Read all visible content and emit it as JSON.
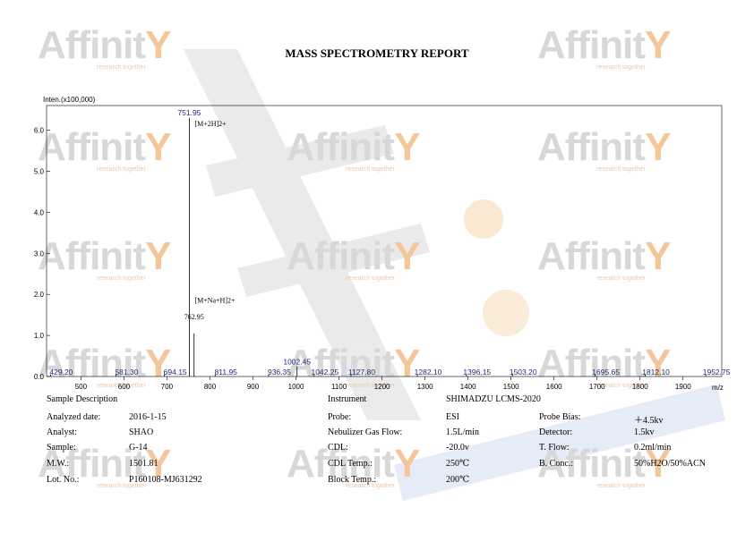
{
  "report": {
    "title": "MASS SPECTROMETRY REPORT",
    "watermark_text": "Affinit",
    "watermark_sub": "research together"
  },
  "chart_data": {
    "type": "bar",
    "ylabel": "Inten.(x100,000)",
    "xlabel": "m/z",
    "xlim": [
      420,
      1990
    ],
    "ylim": [
      0,
      6.6
    ],
    "x_ticks": [
      500,
      600,
      700,
      800,
      900,
      1000,
      1100,
      1200,
      1300,
      1400,
      1500,
      1600,
      1700,
      1800,
      1900
    ],
    "y_ticks": [
      0.0,
      1.0,
      2.0,
      3.0,
      4.0,
      5.0,
      6.0
    ],
    "y_tick_labels": [
      "0.0",
      "1.0",
      "2.0",
      "3.0",
      "4.0",
      "5.0",
      "6.0"
    ],
    "grid": false,
    "peaks": [
      {
        "mz": 429.2,
        "label": "429.20",
        "intensity": 0.05
      },
      {
        "mz": 581.3,
        "label": "581.30",
        "intensity": 0.06
      },
      {
        "mz": 694.15,
        "label": "694.15",
        "intensity": 0.06
      },
      {
        "mz": 751.95,
        "label": "751.95",
        "intensity": 6.3
      },
      {
        "mz": 762.95,
        "label": "762.95",
        "intensity": 1.05
      },
      {
        "mz": 811.95,
        "label": "811.95",
        "intensity": 0.05
      },
      {
        "mz": 936.35,
        "label": "936.35",
        "intensity": 0.05
      },
      {
        "mz": 1002.45,
        "label": "1002.45",
        "intensity": 0.25
      },
      {
        "mz": 1042.25,
        "label": "1042.25",
        "intensity": 0.05
      },
      {
        "mz": 1127.8,
        "label": "1127.80",
        "intensity": 0.05
      },
      {
        "mz": 1282.1,
        "label": "1282.10",
        "intensity": 0.05
      },
      {
        "mz": 1396.15,
        "label": "1396.15",
        "intensity": 0.05
      },
      {
        "mz": 1503.2,
        "label": "1503.20",
        "intensity": 0.07
      },
      {
        "mz": 1695.65,
        "label": "1695.65",
        "intensity": 0.05
      },
      {
        "mz": 1812.1,
        "label": "1812.10",
        "intensity": 0.05
      },
      {
        "mz": 1952.75,
        "label": "1952.75",
        "intensity": 0.05
      }
    ],
    "annotations": [
      {
        "text": "[M+2H]2+",
        "mz": 751.95,
        "y": 6.1
      },
      {
        "text": "[M+Na+H]2+",
        "mz": 751.95,
        "y": 1.8
      }
    ],
    "colors": {
      "peak": "#000000",
      "peak_label": "#1f2a78",
      "axis": "#000000"
    }
  },
  "info": {
    "sample_description": "Sample Description",
    "instrument_label": "Instrument",
    "instrument_value": "SHIMADZU LCMS-2020",
    "left": [
      {
        "label": "Analyzed date:",
        "value": "2016-1-15"
      },
      {
        "label": "Analyst:",
        "value": "SHAO"
      },
      {
        "label": "Sample:",
        "value": "G-14"
      },
      {
        "label": "M.W.:",
        "value": "1501.81"
      },
      {
        "label": "Lot. No.:",
        "value": "P160108-MJ631292"
      }
    ],
    "middle": [
      {
        "label": "Probe:",
        "value": "ESI"
      },
      {
        "label": "Nebulizer Gas Flow:",
        "value": "1.5L/min"
      },
      {
        "label": "CDL:",
        "value": "-20.0v"
      },
      {
        "label": "CDL Temp.:",
        "value": "250℃"
      },
      {
        "label": "Block Temp.:",
        "value": "200℃"
      }
    ],
    "right": [
      {
        "label": "Probe Bias:",
        "value": "＋4.5kv"
      },
      {
        "label": "Detector:",
        "value": "1.5kv"
      },
      {
        "label": "T. Flow:",
        "value": "0.2ml/min"
      },
      {
        "label": "B. Conc.:",
        "value": "50%H2O/50%ACN"
      }
    ]
  }
}
